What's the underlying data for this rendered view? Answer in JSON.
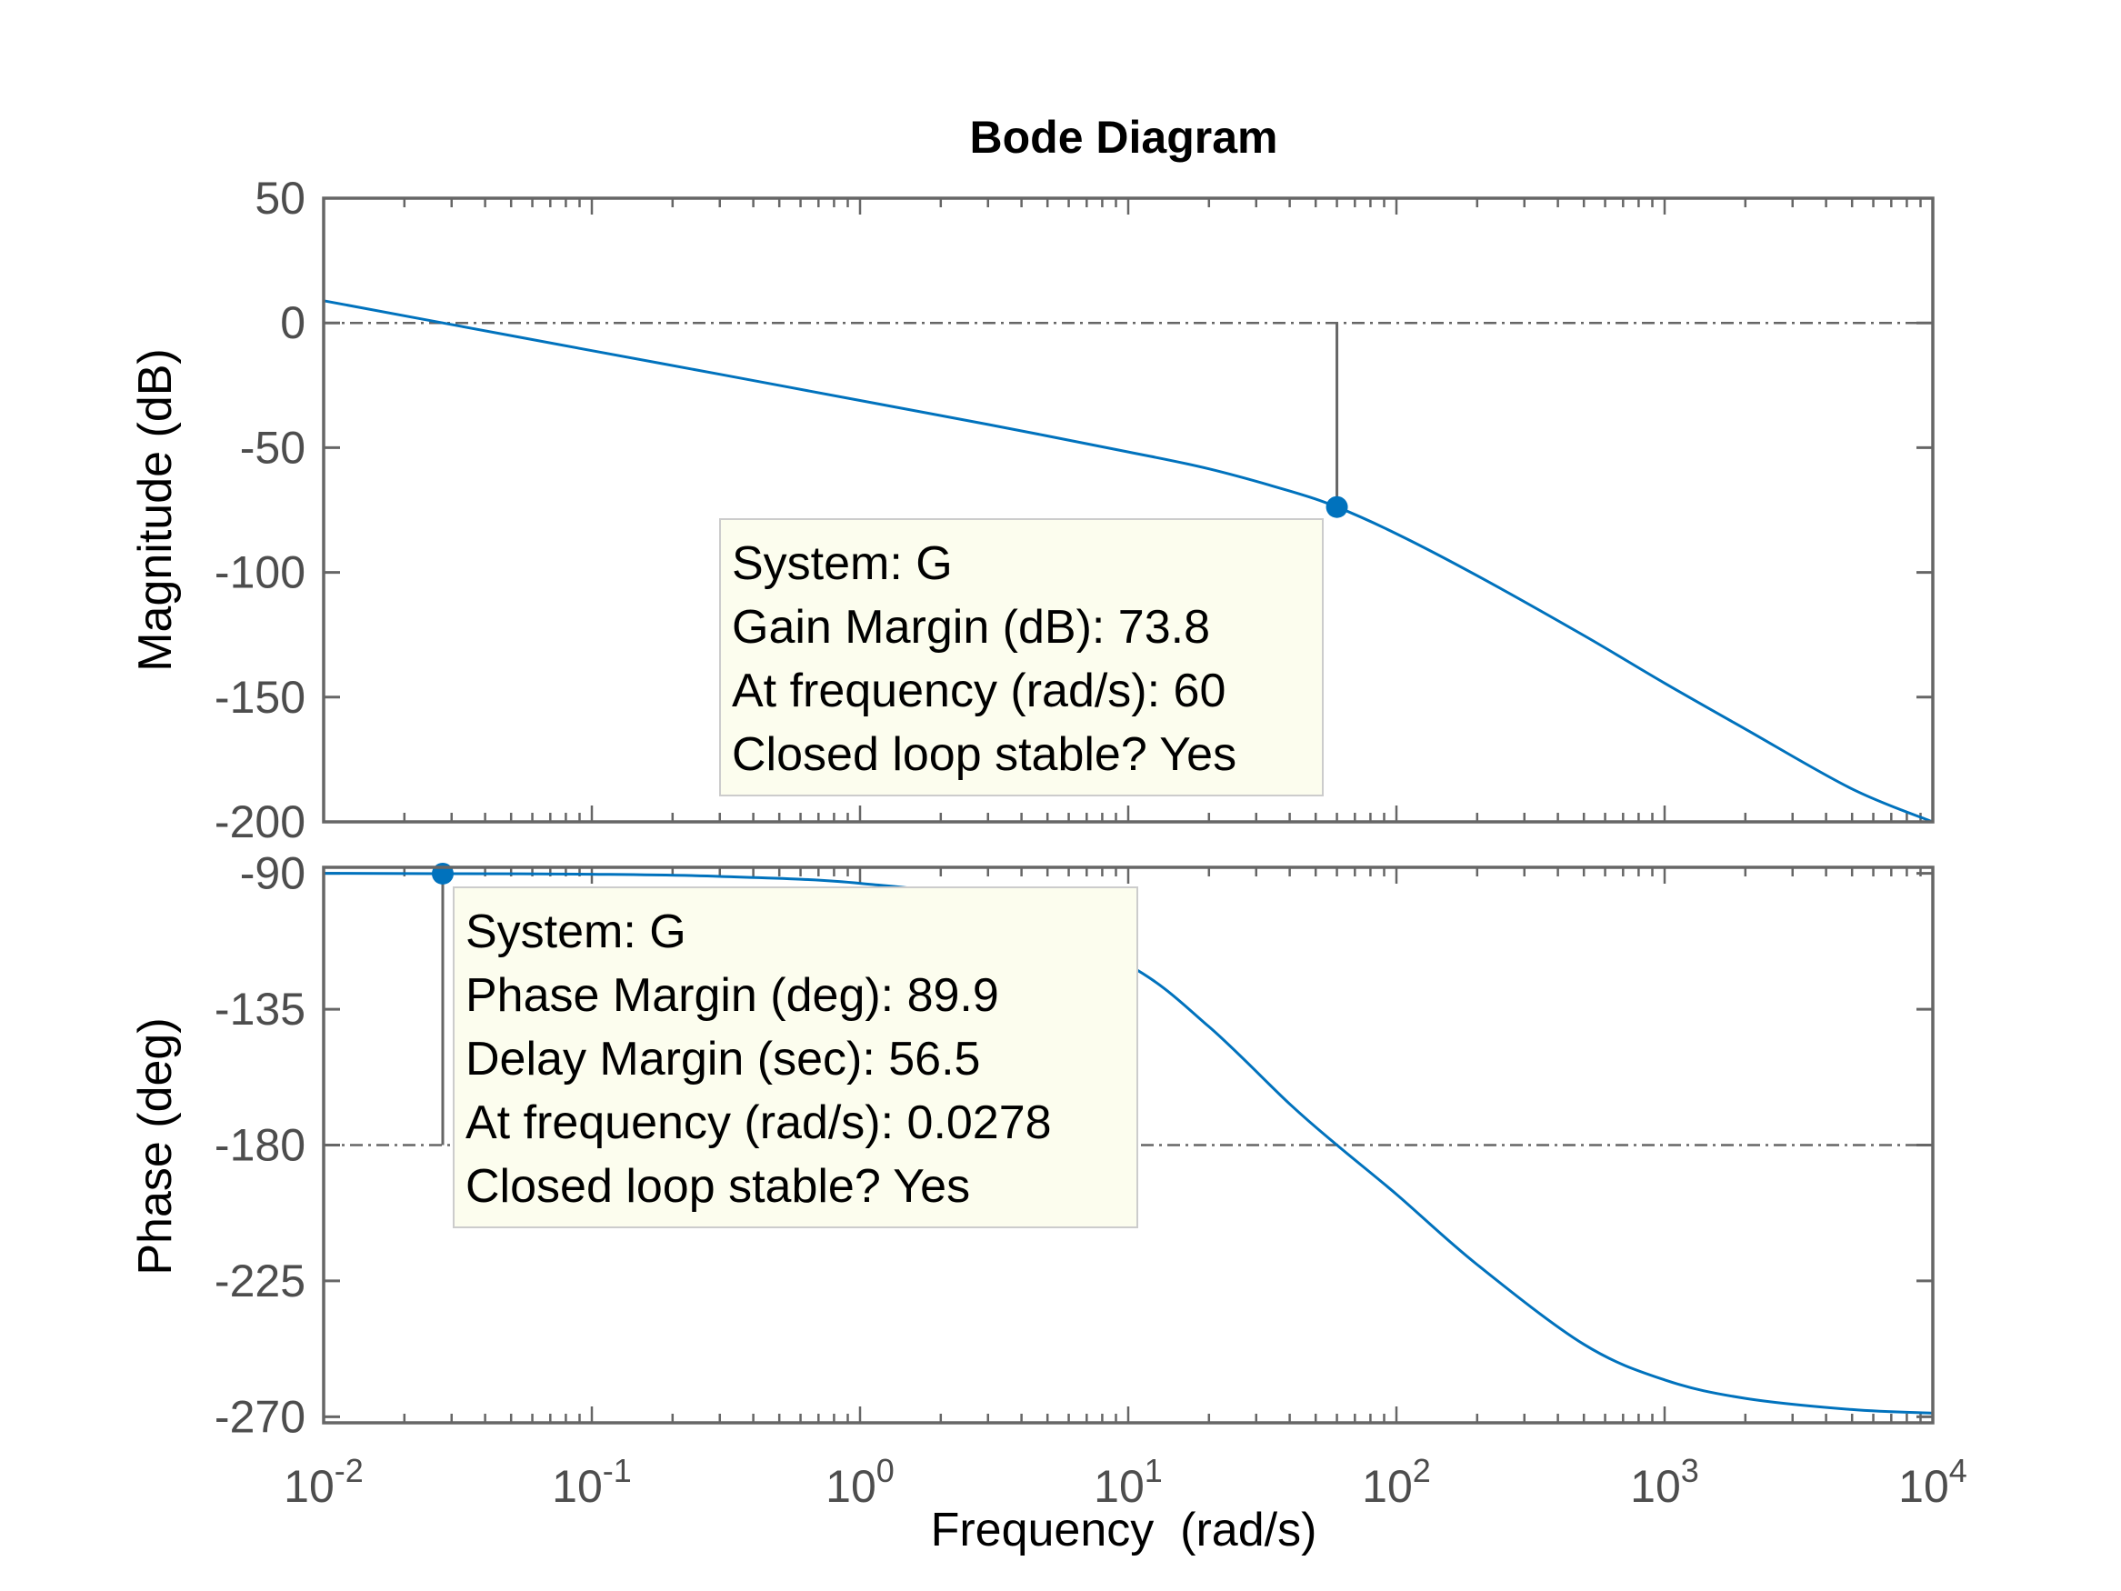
{
  "chart_data": {
    "type": "line",
    "title": "Bode Diagram",
    "xlabel": "Frequency  (rad/s)",
    "xscale": "log",
    "xlim": [
      0.01,
      10000
    ],
    "x_ticks": [
      {
        "value": 0.01,
        "base": "10",
        "exp": "-2"
      },
      {
        "value": 0.1,
        "base": "10",
        "exp": "-1"
      },
      {
        "value": 1,
        "base": "10",
        "exp": "0"
      },
      {
        "value": 10,
        "base": "10",
        "exp": "1"
      },
      {
        "value": 100,
        "base": "10",
        "exp": "2"
      },
      {
        "value": 1000,
        "base": "10",
        "exp": "3"
      },
      {
        "value": 10000,
        "base": "10",
        "exp": "4"
      }
    ],
    "panels": [
      {
        "name": "magnitude",
        "ylabel": "Magnitude (dB)",
        "ylim": [
          -200,
          50
        ],
        "yticks": [
          50,
          0,
          -50,
          -100,
          -150,
          -200
        ],
        "ytick_labels": [
          "50",
          "0",
          "-50",
          "-100",
          "-150",
          "-200"
        ],
        "reference_line": 0,
        "series": [
          {
            "name": "G",
            "color": "#0072BD",
            "x": [
              0.01,
              0.0278,
              0.1,
              0.3,
              1,
              3,
              10,
              20,
              40,
              60,
              100,
              200,
              500,
              1000,
              2000,
              5000,
              10000
            ],
            "y": [
              8.9,
              0,
              -11.1,
              -20.6,
              -31.1,
              -40.7,
              -51.7,
              -58.5,
              -67.4,
              -73.8,
              -84.5,
              -101.3,
              -125.3,
              -144.4,
              -162.8,
              -186.8,
              -200
            ]
          }
        ],
        "marker": {
          "x": 60,
          "y": -73.8
        },
        "annotation": {
          "lines": [
            "System: G",
            "Gain Margin (dB): 73.8",
            "At frequency (rad/s): 60",
            "Closed loop stable? Yes"
          ]
        }
      },
      {
        "name": "phase",
        "ylabel": "Phase (deg)",
        "ylim": [
          -272,
          -88
        ],
        "yticks": [
          -90,
          -135,
          -180,
          -225,
          -270
        ],
        "ytick_labels": [
          "-90",
          "-135",
          "-180",
          "-225",
          "-270"
        ],
        "reference_line": -180,
        "series": [
          {
            "name": "G",
            "color": "#0072BD",
            "x": [
              0.01,
              0.0278,
              0.1,
              0.3,
              1,
              3,
              10,
              20,
              40,
              60,
              100,
              200,
              500,
              1000,
              2000,
              5000,
              10000
            ],
            "y": [
              -90,
              -90.1,
              -90.3,
              -91,
              -93.3,
              -99.8,
              -120.3,
              -140.8,
              -166.4,
              -180,
              -196.3,
              -219.6,
              -246,
              -257.8,
              -263.9,
              -267.6,
              -268.8
            ]
          }
        ],
        "marker": {
          "x": 0.0278,
          "y": -90.1
        },
        "annotation": {
          "lines": [
            "System: G",
            "Phase Margin (deg): 89.9",
            "Delay Margin (sec): 56.5",
            "At frequency (rad/s): 0.0278",
            "Closed loop stable? Yes"
          ]
        }
      }
    ]
  }
}
